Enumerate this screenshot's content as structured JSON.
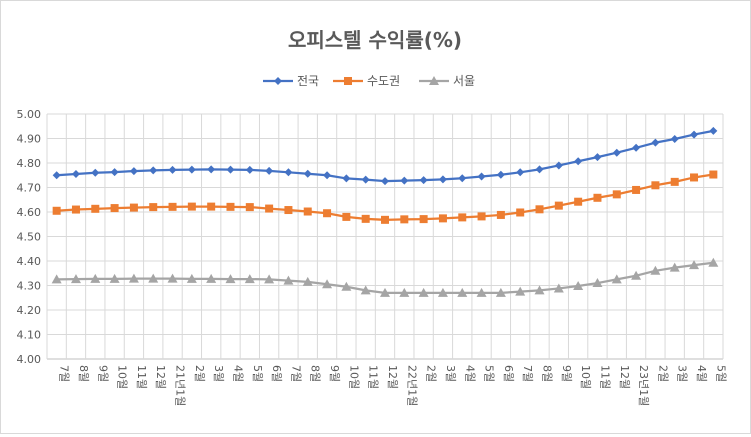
{
  "chart_data": {
    "type": "line",
    "title": "오피스텔 수익률(%)",
    "xlabel": "",
    "ylabel": "",
    "ylim": [
      4.0,
      5.0
    ],
    "yticks": [
      "4.00",
      "4.10",
      "4.20",
      "4.30",
      "4.40",
      "4.50",
      "4.60",
      "4.70",
      "4.80",
      "4.90",
      "5.00"
    ],
    "grid": true,
    "legend_position": "top-center",
    "categories": [
      "7월",
      "8월",
      "9월",
      "10월",
      "11월",
      "12월",
      "21년1월",
      "2월",
      "3월",
      "4월",
      "5월",
      "6월",
      "7월",
      "8월",
      "9월",
      "10월",
      "11월",
      "12월",
      "22년1월",
      "2월",
      "3월",
      "4월",
      "5월",
      "6월",
      "7월",
      "8월",
      "9월",
      "10월",
      "11월",
      "12월",
      "23년1월",
      "2월",
      "3월",
      "4월",
      "5월"
    ],
    "series": [
      {
        "name": "전국",
        "color": "#4472C4",
        "marker": "diamond",
        "values": [
          4.75,
          4.755,
          4.76,
          4.763,
          4.767,
          4.77,
          4.772,
          4.773,
          4.774,
          4.773,
          4.772,
          4.768,
          4.762,
          4.756,
          4.75,
          4.737,
          4.732,
          4.726,
          4.728,
          4.73,
          4.733,
          4.738,
          4.745,
          4.752,
          4.762,
          4.774,
          4.79,
          4.807,
          4.824,
          4.842,
          4.862,
          4.883,
          4.898,
          4.916,
          4.931
        ]
      },
      {
        "name": "수도권",
        "color": "#ED7D31",
        "marker": "square",
        "values": [
          4.605,
          4.61,
          4.613,
          4.616,
          4.618,
          4.62,
          4.621,
          4.622,
          4.622,
          4.621,
          4.62,
          4.614,
          4.608,
          4.602,
          4.595,
          4.58,
          4.572,
          4.568,
          4.57,
          4.571,
          4.574,
          4.578,
          4.582,
          4.588,
          4.598,
          4.611,
          4.626,
          4.642,
          4.658,
          4.672,
          4.69,
          4.709,
          4.723,
          4.741,
          4.753
        ]
      },
      {
        "name": "서울",
        "color": "#A5A5A5",
        "marker": "triangle",
        "values": [
          4.325,
          4.326,
          4.327,
          4.327,
          4.328,
          4.328,
          4.328,
          4.327,
          4.327,
          4.326,
          4.326,
          4.325,
          4.32,
          4.315,
          4.305,
          4.295,
          4.28,
          4.27,
          4.27,
          4.27,
          4.27,
          4.27,
          4.27,
          4.27,
          4.275,
          4.28,
          4.288,
          4.298,
          4.31,
          4.325,
          4.34,
          4.36,
          4.373,
          4.383,
          4.393
        ]
      }
    ]
  }
}
